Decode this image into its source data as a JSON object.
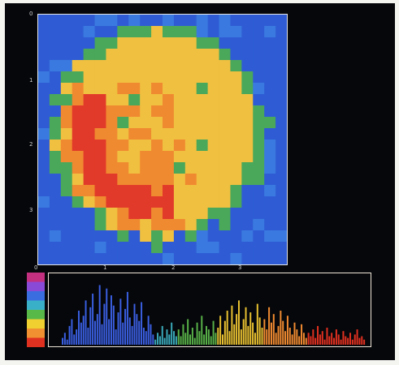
{
  "chart_data": [
    {
      "type": "heatmap",
      "title": "",
      "xlabel": "",
      "ylabel": "",
      "x_ticks": [
        "0",
        "1",
        "2",
        "3"
      ],
      "y_ticks": [
        "0",
        "1",
        "2",
        "3"
      ],
      "grid": false,
      "colors": {
        "background": "#2f5cd4",
        "blue": "#2f5cd4",
        "green": "#4aa85a",
        "yellow": "#f0c040",
        "orange": "#f08a30",
        "red": "#e23a2a"
      },
      "color_order": [
        "blue",
        "green",
        "yellow",
        "orange",
        "red"
      ],
      "grid_cols": 22,
      "grid_rows": 22,
      "blob": {
        "center": [
          10.5,
          10.4
        ],
        "radius": 8.8,
        "inner_hot_arc": "lower-left",
        "green_spots": [
          [
            14,
            6
          ],
          [
            8,
            7
          ],
          [
            7,
            9
          ],
          [
            14,
            11
          ],
          [
            12,
            13
          ]
        ]
      }
    },
    {
      "type": "bar",
      "title": "",
      "xlabel": "",
      "ylabel": "",
      "grid": false,
      "colorbar": [
        "#c43080",
        "#8a4ad8",
        "#3a6ee0",
        "#3ab0c8",
        "#58b848",
        "#f0d030",
        "#f09030",
        "#e03020"
      ],
      "series": [
        {
          "color": "#3a5ee0",
          "values": [
            8,
            14,
            6,
            22,
            30,
            12,
            18,
            40,
            26,
            34,
            52,
            20,
            44,
            60,
            28,
            36,
            70,
            24,
            48,
            66,
            30,
            58,
            46,
            18,
            38,
            54,
            26,
            42,
            62,
            32,
            22,
            48,
            36,
            28,
            50,
            20,
            16,
            34,
            24,
            12
          ]
        },
        {
          "color": "#3aa8b8",
          "values": [
            6,
            14,
            10,
            22,
            8,
            18,
            12,
            26,
            16,
            10
          ]
        },
        {
          "color": "#58b048",
          "values": [
            18,
            10,
            24,
            14,
            30,
            12,
            20,
            8,
            26,
            16,
            34,
            12,
            22,
            18,
            10,
            28,
            14
          ]
        },
        {
          "color": "#e8c030",
          "values": [
            20,
            34,
            12,
            28,
            40,
            16,
            46,
            24,
            36,
            52,
            18,
            30,
            44,
            22,
            38,
            26,
            14,
            48,
            32,
            20
          ]
        },
        {
          "color": "#f08a30",
          "values": [
            30,
            18,
            44,
            26,
            36,
            14,
            22,
            40,
            28,
            16,
            34,
            20,
            12,
            26,
            18,
            10,
            24,
            14,
            8
          ]
        },
        {
          "color": "#e03020",
          "values": [
            14,
            10,
            18,
            8,
            22,
            12,
            16,
            6,
            20,
            10,
            14,
            8,
            18,
            12,
            6,
            16,
            10,
            8,
            14,
            6,
            12,
            18,
            8,
            10,
            6
          ]
        }
      ],
      "ylim": [
        0,
        80
      ]
    }
  ]
}
